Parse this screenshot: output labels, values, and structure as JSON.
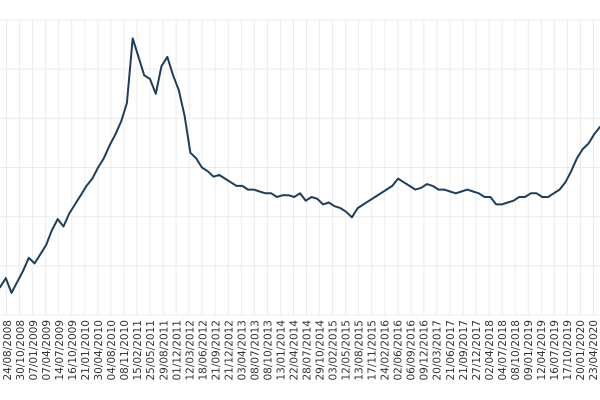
{
  "chart_data": {
    "type": "line",
    "title": "",
    "xlabel": "",
    "ylabel": "",
    "grid": true,
    "legend": "none",
    "line_color": "#1d3f5c",
    "x_ticks": [
      "24/08/2008",
      "30/10/2008",
      "07/01/2009",
      "07/04/2009",
      "14/07/2009",
      "16/10/2009",
      "21/01/2010",
      "30/04/2010",
      "04/08/2010",
      "08/11/2010",
      "15/02/2011",
      "25/05/2011",
      "29/08/2011",
      "01/12/2011",
      "12/03/2012",
      "18/06/2012",
      "21/09/2012",
      "21/12/2012",
      "03/04/2013",
      "08/07/2013",
      "08/10/2013",
      "13/01/2014",
      "22/04/2014",
      "28/07/2014",
      "29/10/2014",
      "03/02/2015",
      "12/05/2015",
      "13/08/2015",
      "17/11/2015",
      "24/02/2016",
      "02/06/2016",
      "06/09/2016",
      "09/12/2016",
      "20/03/2017",
      "21/06/2017",
      "21/09/2017",
      "27/12/2017",
      "02/04/2018",
      "04/07/2018",
      "08/10/2018",
      "09/01/2019",
      "12/04/2019",
      "16/07/2019",
      "17/10/2019",
      "20/01/2020",
      "23/04/2020"
    ],
    "series": [
      {
        "values": [
          25,
          30,
          22,
          28,
          34,
          41,
          38,
          43,
          48,
          56,
          62,
          58,
          65,
          70,
          75,
          80,
          84,
          90,
          95,
          102,
          108,
          115,
          125,
          160,
          150,
          140,
          138,
          130,
          145,
          150,
          140,
          132,
          118,
          98,
          95,
          90,
          88,
          85,
          86,
          84,
          82,
          80,
          80,
          78,
          78,
          77,
          76,
          76,
          74,
          75,
          75,
          74,
          76,
          72,
          74,
          73,
          70,
          71,
          69,
          68,
          66,
          63,
          68,
          70,
          72,
          74,
          76,
          78,
          80,
          84,
          82,
          80,
          78,
          79,
          81,
          80,
          78,
          78,
          77,
          76,
          77,
          78,
          77,
          76,
          74,
          74,
          70,
          70,
          71,
          72,
          74,
          74,
          76,
          76,
          74,
          74,
          76,
          78,
          82,
          88,
          95,
          100,
          103,
          108,
          112
        ]
      }
    ]
  }
}
